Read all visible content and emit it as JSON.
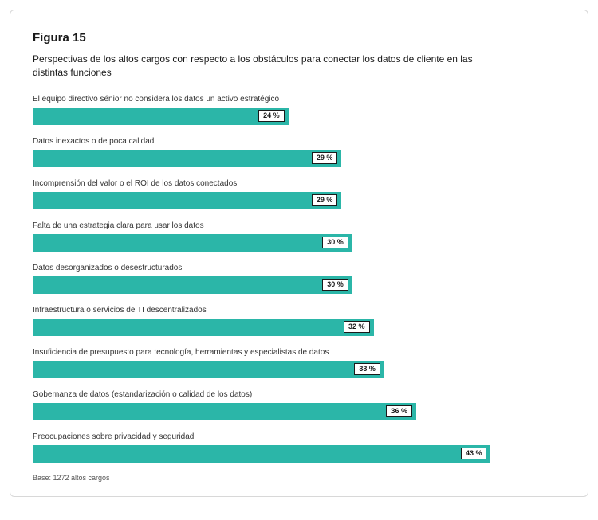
{
  "figure": {
    "title": "Figura 15",
    "subtitle": "Perspectivas de los altos cargos con respecto a los obstáculos para conectar los datos de cliente en las distintas funciones",
    "footer": "Base: 1272 altos cargos",
    "chart": {
      "type": "bar-horizontal",
      "bar_color": "#2bb6a8",
      "background_color": "#ffffff",
      "value_box_bg": "#ffffff",
      "value_box_border": "#1a1a1a",
      "title_fontsize": 15,
      "subtitle_fontsize": 12,
      "label_fontsize": 10,
      "value_fontsize": 9,
      "max_value": 50,
      "value_suffix": " %",
      "items": [
        {
          "label": "El equipo directivo sénior no considera los datos un activo estratégico",
          "value": 24
        },
        {
          "label": "Datos inexactos o de poca calidad",
          "value": 29
        },
        {
          "label": "Incomprensión del valor o el ROI de los datos conectados",
          "value": 29
        },
        {
          "label": "Falta de una estrategia clara para usar los datos",
          "value": 30
        },
        {
          "label": "Datos desorganizados o desestructurados",
          "value": 30
        },
        {
          "label": "Infraestructura o servicios de TI descentralizados",
          "value": 32
        },
        {
          "label": "Insuficiencia de presupuesto para tecnología, herramientas y especialistas de datos",
          "value": 33
        },
        {
          "label": "Gobernanza de datos (estandarización o calidad de los datos)",
          "value": 36
        },
        {
          "label": "Preocupaciones sobre privacidad y seguridad",
          "value": 43
        }
      ]
    }
  }
}
